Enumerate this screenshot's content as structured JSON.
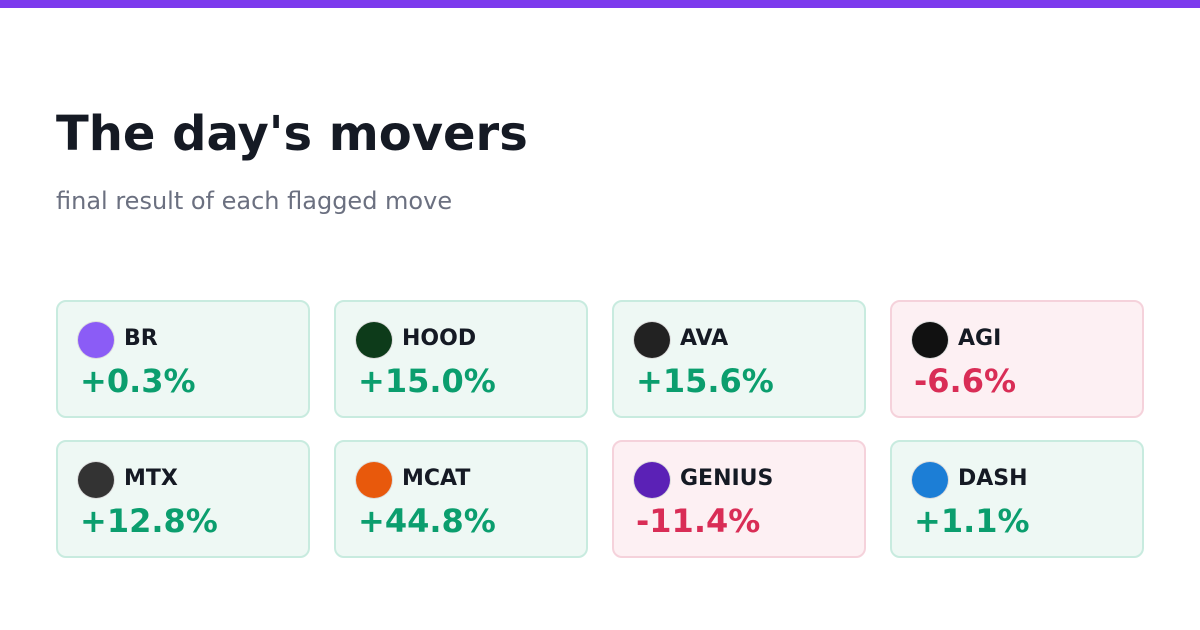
{
  "header": {
    "title": "The day's movers",
    "subtitle": "final result of each flagged move"
  },
  "cards": [
    {
      "symbol": "BR",
      "change": "+0.3%",
      "color": "#0b9e6e"
    },
    {
      "symbol": "HOOD",
      "change": "+15.0%",
      "color": "#0b9e6e"
    },
    {
      "symbol": "AVA",
      "change": "+15.6%",
      "color": "#0b9e6e"
    },
    {
      "symbol": "AGI",
      "change": "-6.6%",
      "color": "#d92d56"
    },
    {
      "symbol": "MTX",
      "change": "+12.8%",
      "color": "#0b9e6e"
    },
    {
      "symbol": "MCAT",
      "change": "+44.8%",
      "color": "#0b9e6e"
    },
    {
      "symbol": "GENIUS",
      "change": "-11.4%",
      "color": "#d92d56"
    },
    {
      "symbol": "DASH",
      "change": "+1.1%",
      "color": "#0b9e6e"
    }
  ]
}
